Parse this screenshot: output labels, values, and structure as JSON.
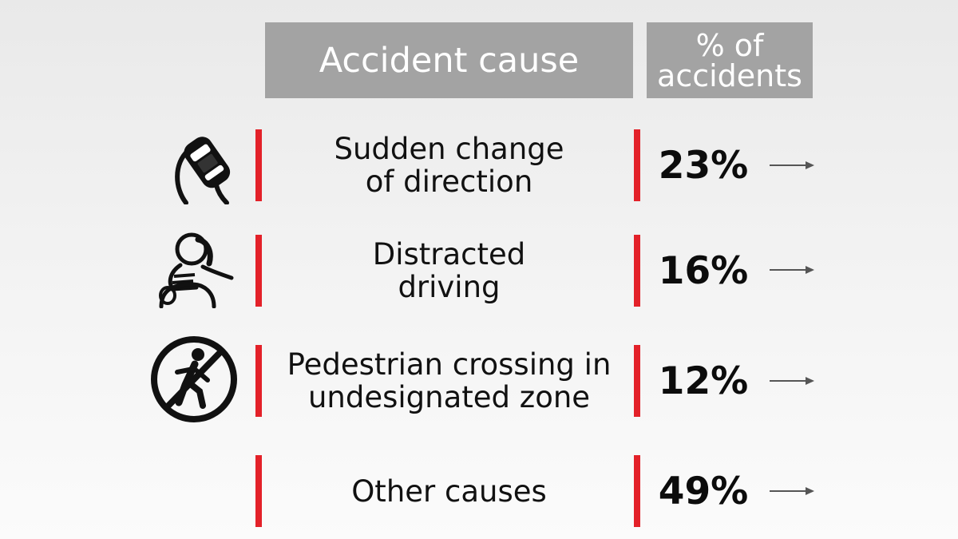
{
  "header": {
    "cause_label": "Accident cause",
    "percent_label": "% of\naccidents"
  },
  "colors": {
    "header_bg": "#a3a3a3",
    "accent_bar": "#e32129",
    "text": "#111111"
  },
  "rows": [
    {
      "cause": "Sudden change\nof direction",
      "percent": "23%",
      "icon": "car-swerve-icon"
    },
    {
      "cause": "Distracted\ndriving",
      "percent": "16%",
      "icon": "distracted-driver-icon"
    },
    {
      "cause": "Pedestrian crossing in\nundesignated zone",
      "percent": "12%",
      "icon": "no-pedestrian-crossing-icon"
    },
    {
      "cause": "Other causes",
      "percent": "49%",
      "icon": ""
    }
  ],
  "chart_data": {
    "type": "table",
    "columns": [
      "Accident cause",
      "% of accidents"
    ],
    "categories": [
      "Sudden change of direction",
      "Distracted driving",
      "Pedestrian crossing in undesignated zone",
      "Other causes"
    ],
    "values": [
      23,
      16,
      12,
      49
    ],
    "unit": "%"
  }
}
